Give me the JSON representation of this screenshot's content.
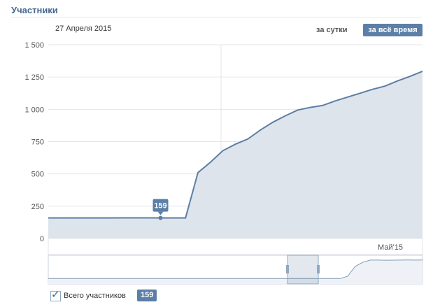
{
  "header": {
    "title": "Участники",
    "date": "27 Апреля 2015",
    "period_day": "за сутки",
    "period_all": "за всё время"
  },
  "legend": {
    "label": "Всего участников",
    "checked": true,
    "value_badge": "159"
  },
  "tooltip": {
    "value": "159"
  },
  "colors": {
    "accent": "#5b7fa6",
    "line": "#5d7ea3",
    "area": "#dde4ec",
    "grid": "#e4e6ea"
  },
  "chart_data": {
    "type": "area",
    "x_labels": [
      "Май'15"
    ],
    "y_ticks": [
      0,
      250,
      500,
      750,
      1000,
      1250,
      1500
    ],
    "y_tick_labels": [
      "0",
      "250",
      "500",
      "750",
      "1 000",
      "1 250",
      "1 500"
    ],
    "ylim": [
      0,
      1500
    ],
    "series": [
      {
        "name": "Всего участников",
        "values": [
          159,
          159,
          159,
          159,
          159,
          159,
          160,
          160,
          160,
          159,
          159,
          159,
          510,
          590,
          680,
          730,
          770,
          840,
          900,
          950,
          995,
          1015,
          1030,
          1065,
          1095,
          1125,
          1155,
          1180,
          1220,
          1255,
          1295
        ]
      }
    ],
    "highlight_index": 9,
    "navigator_values": [
      159,
      159,
      159,
      159,
      159,
      159,
      160,
      160,
      160,
      159,
      159,
      159,
      159,
      159,
      159,
      159,
      159,
      159,
      159,
      159,
      159,
      159,
      159,
      159,
      159,
      159,
      159,
      159,
      159,
      159,
      159,
      159,
      159,
      159,
      159,
      159,
      159,
      159,
      159,
      159,
      300,
      900,
      1150,
      1290,
      1290,
      1280,
      1285,
      1290,
      1295,
      1290,
      1295
    ]
  }
}
